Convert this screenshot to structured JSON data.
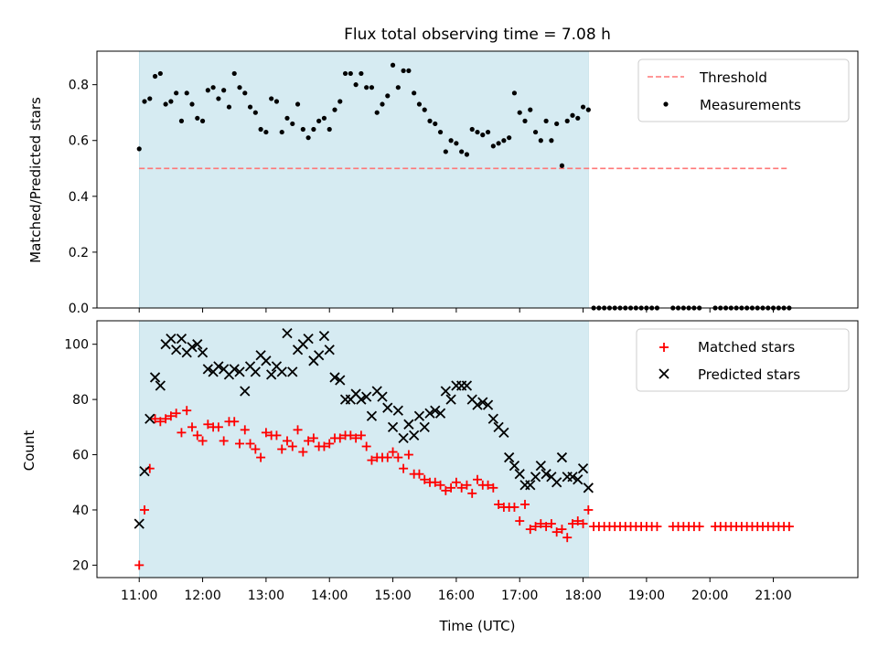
{
  "chart_data": [
    {
      "type": "scatter",
      "title": "Flux total observing time = 7.08 h",
      "ylabel": "Matched/Predicted stars",
      "xlabel": "",
      "xlim": [
        "10:20",
        "22:20"
      ],
      "ylim": [
        0,
        0.92
      ],
      "x_tick_labels": [
        "11:00",
        "12:00",
        "13:00",
        "14:00",
        "15:00",
        "16:00",
        "17:00",
        "18:00",
        "19:00",
        "20:00",
        "21:00"
      ],
      "y_ticks": [
        0.0,
        0.2,
        0.4,
        0.6,
        0.8
      ],
      "y_tick_labels": [
        "0.0",
        "0.2",
        "0.4",
        "0.6",
        "0.8"
      ],
      "observing_span": [
        "11:00",
        "18:05"
      ],
      "legend_position": "top-right",
      "grid": false,
      "series": [
        {
          "name": "Threshold",
          "kind": "dashed-line",
          "color": "#ff7777",
          "x": [
            "11:00",
            "21:15"
          ],
          "y": [
            0.5,
            0.5
          ]
        },
        {
          "name": "Measurements",
          "kind": "dots",
          "color": "#000000",
          "x": [
            "11:00",
            "11:05",
            "11:10",
            "11:15",
            "11:20",
            "11:25",
            "11:30",
            "11:35",
            "11:40",
            "11:45",
            "11:50",
            "11:55",
            "12:00",
            "12:05",
            "12:10",
            "12:15",
            "12:20",
            "12:25",
            "12:30",
            "12:35",
            "12:40",
            "12:45",
            "12:50",
            "12:55",
            "13:00",
            "13:05",
            "13:10",
            "13:15",
            "13:20",
            "13:25",
            "13:30",
            "13:35",
            "13:40",
            "13:45",
            "13:50",
            "13:55",
            "14:00",
            "14:05",
            "14:10",
            "14:15",
            "14:20",
            "14:25",
            "14:30",
            "14:35",
            "14:40",
            "14:45",
            "14:50",
            "14:55",
            "15:00",
            "15:05",
            "15:10",
            "15:15",
            "15:20",
            "15:25",
            "15:30",
            "15:35",
            "15:40",
            "15:45",
            "15:50",
            "15:55",
            "16:00",
            "16:05",
            "16:10",
            "16:15",
            "16:20",
            "16:25",
            "16:30",
            "16:35",
            "16:40",
            "16:45",
            "16:50",
            "16:55",
            "17:00",
            "17:05",
            "17:10",
            "17:15",
            "17:20",
            "17:25",
            "17:30",
            "17:35",
            "17:40",
            "17:45",
            "17:50",
            "17:55",
            "18:00",
            "18:05",
            "18:10",
            "18:15",
            "18:20",
            "18:25",
            "18:30",
            "18:35",
            "18:40",
            "18:45",
            "18:50",
            "18:55",
            "19:00",
            "19:05",
            "19:10",
            "19:25",
            "19:30",
            "19:35",
            "19:40",
            "19:45",
            "19:50",
            "20:05",
            "20:10",
            "20:15",
            "20:20",
            "20:25",
            "20:30",
            "20:35",
            "20:40",
            "20:45",
            "20:50",
            "20:55",
            "21:00",
            "21:05",
            "21:10",
            "21:15"
          ],
          "y": [
            0.57,
            0.74,
            0.75,
            0.83,
            0.84,
            0.73,
            0.74,
            0.77,
            0.67,
            0.77,
            0.73,
            0.68,
            0.67,
            0.78,
            0.79,
            0.75,
            0.78,
            0.72,
            0.84,
            0.79,
            0.77,
            0.72,
            0.7,
            0.64,
            0.63,
            0.75,
            0.74,
            0.63,
            0.68,
            0.66,
            0.73,
            0.64,
            0.61,
            0.64,
            0.67,
            0.68,
            0.64,
            0.71,
            0.74,
            0.84,
            0.84,
            0.8,
            0.84,
            0.79,
            0.79,
            0.7,
            0.73,
            0.76,
            0.87,
            0.79,
            0.85,
            0.85,
            0.77,
            0.73,
            0.71,
            0.67,
            0.66,
            0.63,
            0.56,
            0.6,
            0.59,
            0.56,
            0.55,
            0.64,
            0.63,
            0.62,
            0.63,
            0.58,
            0.59,
            0.6,
            0.61,
            0.77,
            0.7,
            0.67,
            0.71,
            0.63,
            0.6,
            0.67,
            0.6,
            0.66,
            0.51,
            0.67,
            0.69,
            0.68,
            0.72,
            0.71,
            0.0,
            0.0,
            0.0,
            0.0,
            0.0,
            0.0,
            0.0,
            0.0,
            0.0,
            0.0,
            0.0,
            0.0,
            0.0,
            0.0,
            0.0,
            0.0,
            0.0,
            0.0,
            0.0,
            0.0,
            0.0,
            0.0,
            0.0,
            0.0,
            0.0,
            0.0,
            0.0,
            0.0,
            0.0,
            0.0,
            0.0,
            0.0,
            0.0,
            0.0
          ]
        }
      ]
    },
    {
      "type": "scatter",
      "title": "",
      "ylabel": "Count",
      "xlabel": "Time (UTC)",
      "xlim": [
        "10:20",
        "22:20"
      ],
      "ylim": [
        15.5,
        108.5
      ],
      "x_tick_labels": [
        "11:00",
        "12:00",
        "13:00",
        "14:00",
        "15:00",
        "16:00",
        "17:00",
        "18:00",
        "19:00",
        "20:00",
        "21:00"
      ],
      "y_ticks": [
        20,
        40,
        60,
        80,
        100
      ],
      "y_tick_labels": [
        "20",
        "40",
        "60",
        "80",
        "100"
      ],
      "observing_span": [
        "11:00",
        "18:05"
      ],
      "legend_position": "top-right",
      "grid": false,
      "series": [
        {
          "name": "Matched stars",
          "kind": "plus",
          "color": "#ff0000",
          "x": [
            "11:00",
            "11:05",
            "11:10",
            "11:15",
            "11:20",
            "11:25",
            "11:30",
            "11:35",
            "11:40",
            "11:45",
            "11:50",
            "11:55",
            "12:00",
            "12:05",
            "12:10",
            "12:15",
            "12:20",
            "12:25",
            "12:30",
            "12:35",
            "12:40",
            "12:45",
            "12:50",
            "12:55",
            "13:00",
            "13:05",
            "13:10",
            "13:15",
            "13:20",
            "13:25",
            "13:30",
            "13:35",
            "13:40",
            "13:45",
            "13:50",
            "13:55",
            "14:00",
            "14:05",
            "14:10",
            "14:15",
            "14:20",
            "14:25",
            "14:30",
            "14:35",
            "14:40",
            "14:45",
            "14:50",
            "14:55",
            "15:00",
            "15:05",
            "15:10",
            "15:15",
            "15:20",
            "15:25",
            "15:30",
            "15:35",
            "15:40",
            "15:45",
            "15:50",
            "15:55",
            "16:00",
            "16:05",
            "16:10",
            "16:15",
            "16:20",
            "16:25",
            "16:30",
            "16:35",
            "16:40",
            "16:45",
            "16:50",
            "16:55",
            "17:00",
            "17:05",
            "17:10",
            "17:15",
            "17:20",
            "17:25",
            "17:30",
            "17:35",
            "17:40",
            "17:45",
            "17:50",
            "17:55",
            "18:00",
            "18:05",
            "18:10",
            "18:15",
            "18:20",
            "18:25",
            "18:30",
            "18:35",
            "18:40",
            "18:45",
            "18:50",
            "18:55",
            "19:00",
            "19:05",
            "19:10",
            "19:25",
            "19:30",
            "19:35",
            "19:40",
            "19:45",
            "19:50",
            "20:05",
            "20:10",
            "20:15",
            "20:20",
            "20:25",
            "20:30",
            "20:35",
            "20:40",
            "20:45",
            "20:50",
            "20:55",
            "21:00",
            "21:05",
            "21:10",
            "21:15"
          ],
          "y": [
            20,
            40,
            55,
            73,
            72,
            73,
            74,
            75,
            68,
            76,
            70,
            67,
            65,
            71,
            70,
            70,
            65,
            72,
            72,
            64,
            69,
            64,
            62,
            59,
            68,
            67,
            67,
            62,
            65,
            63,
            69,
            61,
            65,
            66,
            63,
            63,
            64,
            66,
            66,
            67,
            67,
            66,
            67,
            63,
            58,
            59,
            59,
            59,
            61,
            59,
            55,
            60,
            53,
            53,
            51,
            50,
            50,
            49,
            47,
            48,
            50,
            48,
            49,
            46,
            51,
            49,
            49,
            48,
            42,
            41,
            41,
            41,
            36,
            42,
            33,
            34,
            35,
            34,
            35,
            32,
            33,
            30,
            35,
            36,
            35,
            40,
            34,
            34,
            34,
            34,
            34,
            34,
            34,
            34,
            34,
            34,
            34,
            34,
            34,
            34,
            34,
            34,
            34,
            34,
            34,
            34,
            34,
            34,
            34,
            34,
            34,
            34,
            34,
            34,
            34,
            34,
            34,
            34,
            34,
            34
          ]
        },
        {
          "name": "Predicted stars",
          "kind": "x",
          "color": "#000000",
          "x": [
            "11:00",
            "11:05",
            "11:10",
            "11:15",
            "11:20",
            "11:25",
            "11:30",
            "11:35",
            "11:40",
            "11:45",
            "11:50",
            "11:55",
            "12:00",
            "12:05",
            "12:10",
            "12:15",
            "12:20",
            "12:25",
            "12:30",
            "12:35",
            "12:40",
            "12:45",
            "12:50",
            "12:55",
            "13:00",
            "13:05",
            "13:10",
            "13:15",
            "13:20",
            "13:25",
            "13:30",
            "13:35",
            "13:40",
            "13:45",
            "13:50",
            "13:55",
            "14:00",
            "14:05",
            "14:10",
            "14:15",
            "14:20",
            "14:25",
            "14:30",
            "14:35",
            "14:40",
            "14:45",
            "14:50",
            "14:55",
            "15:00",
            "15:05",
            "15:10",
            "15:15",
            "15:20",
            "15:25",
            "15:30",
            "15:35",
            "15:40",
            "15:45",
            "15:50",
            "15:55",
            "16:00",
            "16:05",
            "16:10",
            "16:15",
            "16:20",
            "16:25",
            "16:30",
            "16:35",
            "16:40",
            "16:45",
            "16:50",
            "16:55",
            "17:00",
            "17:05",
            "17:10",
            "17:15",
            "17:20",
            "17:25",
            "17:30",
            "17:35",
            "17:40",
            "17:45",
            "17:50",
            "17:55",
            "18:00",
            "18:05"
          ],
          "y": [
            35,
            54,
            73,
            88,
            85,
            100,
            102,
            98,
            102,
            97,
            99,
            100,
            97,
            91,
            90,
            92,
            91,
            89,
            91,
            90,
            83,
            92,
            90,
            96,
            94,
            89,
            92,
            90,
            104,
            90,
            98,
            100,
            102,
            94,
            96,
            103,
            98,
            88,
            87,
            80,
            80,
            82,
            80,
            81,
            74,
            83,
            81,
            77,
            70,
            76,
            66,
            71,
            67,
            74,
            70,
            75,
            76,
            75,
            83,
            80,
            85,
            85,
            85,
            80,
            78,
            79,
            78,
            73,
            70,
            68,
            59,
            56,
            53,
            49,
            49,
            52,
            56,
            53,
            52,
            50,
            59,
            52,
            52,
            51,
            55,
            48
          ]
        }
      ]
    }
  ]
}
